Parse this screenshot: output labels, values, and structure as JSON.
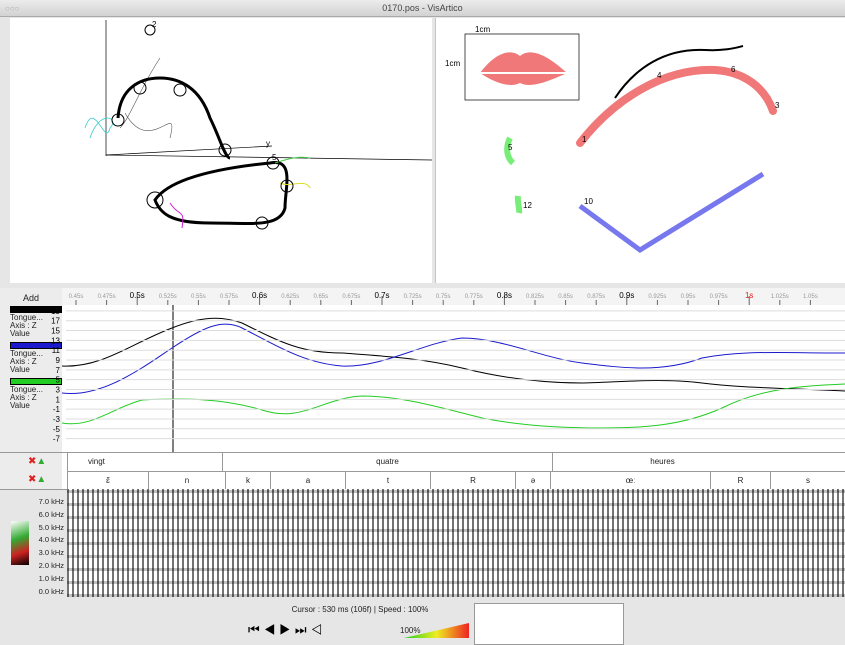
{
  "window": {
    "title": "0170.pos - VisArtico"
  },
  "left_view": {
    "labels": [
      "2",
      "y",
      "5"
    ]
  },
  "right_view": {
    "scale_labels": [
      "1cm",
      "1cm"
    ],
    "point_labels": [
      "4",
      "6",
      "3",
      "1",
      "5",
      "12",
      "10"
    ]
  },
  "timeline": {
    "add_button": "Add",
    "ruler": [
      "0.45s",
      "0.475s",
      "0.5s",
      "0.525s",
      "0.55s",
      "0.575s",
      "0.6s",
      "0.625s",
      "0.65s",
      "0.675s",
      "0.7s",
      "0.725s",
      "0.75s",
      "0.775s",
      "0.8s",
      "0.825s",
      "0.85s",
      "0.875s",
      "0.9s",
      "0.925s",
      "0.95s",
      "0.975s",
      "1s",
      "1.025s",
      "1.05s"
    ],
    "channels": [
      {
        "name": "Tongue...",
        "axis": "Axis : Z",
        "measure": "Value",
        "color": "#000000"
      },
      {
        "name": "Tongue...",
        "axis": "Axis : Z",
        "measure": "Value",
        "color": "#1a1acc"
      },
      {
        "name": "Tongue...",
        "axis": "Axis : Z",
        "measure": "Value",
        "color": "#22cc22"
      }
    ],
    "ylim": [
      -8.5,
      20
    ],
    "yticks": [
      19,
      17,
      15,
      13,
      11,
      9,
      7,
      5,
      3,
      1,
      -1,
      -3,
      -5,
      -7
    ]
  },
  "annotation": {
    "words": [
      "vingt",
      "quatre",
      "heures"
    ],
    "phones": [
      "ɛ̃",
      "n",
      "k",
      "a",
      "t",
      "R",
      "ə",
      "œː",
      "R",
      "s"
    ]
  },
  "spectrogram": {
    "labels": [
      "7.0 kHz",
      "6.0 kHz",
      "5.0 kHz",
      "4.0 kHz",
      "3.0 kHz",
      "2.0 kHz",
      "1.0 kHz",
      "0.0 kHz"
    ]
  },
  "status": {
    "cursor": "Cursor : 530 ms (106f) | Speed : 100%",
    "volume": "100%"
  }
}
